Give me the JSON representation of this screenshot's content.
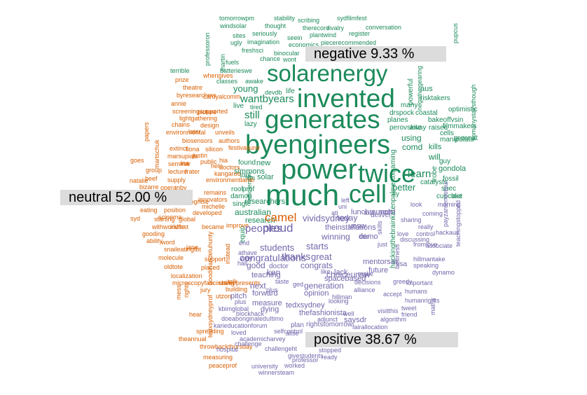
{
  "colors": {
    "positive": "#1b8a5a",
    "neutral": "#d95f02",
    "negative": "#7366ab",
    "label_bg": "#dcdcdc"
  },
  "labels": {
    "negative": "negative 9.33 %",
    "neutral": "neutral 52.00 %",
    "positive": "positive 38.67 %"
  },
  "words": [
    {
      "t": "solarenergy",
      "s": "positive"
    },
    {
      "t": "invented",
      "s": "positive"
    },
    {
      "t": "generates",
      "s": "positive"
    },
    {
      "t": "byengineers",
      "s": "positive"
    },
    {
      "t": "power",
      "s": "positive"
    },
    {
      "t": "twice",
      "s": "positive"
    },
    {
      "t": "much",
      "s": "positive"
    },
    {
      "t": "cell",
      "s": "positive"
    },
    {
      "t": "tomorrowpm",
      "s": "positive"
    },
    {
      "t": "stability",
      "s": "positive"
    },
    {
      "t": "sydfilmfest",
      "s": "positive"
    },
    {
      "t": "windsolar",
      "s": "positive"
    },
    {
      "t": "thought",
      "s": "positive"
    },
    {
      "t": "scribing",
      "s": "positive"
    },
    {
      "t": "therecord",
      "s": "positive"
    },
    {
      "t": "rivalry",
      "s": "positive"
    },
    {
      "t": "conversation",
      "s": "positive"
    },
    {
      "t": "sites",
      "s": "positive"
    },
    {
      "t": "seriously",
      "s": "positive"
    },
    {
      "t": "seein",
      "s": "positive"
    },
    {
      "t": "plantwind",
      "s": "positive"
    },
    {
      "t": "register",
      "s": "positive"
    },
    {
      "t": "ugly",
      "s": "positive"
    },
    {
      "t": "imagination",
      "s": "positive"
    },
    {
      "t": "economics",
      "s": "positive"
    },
    {
      "t": "piecerecommended",
      "s": "positive"
    },
    {
      "t": "freshsci",
      "s": "positive"
    },
    {
      "t": "binocular",
      "s": "positive"
    },
    {
      "t": "chance",
      "s": "positive"
    },
    {
      "t": "wont",
      "s": "positive"
    },
    {
      "t": "fuels",
      "s": "positive"
    },
    {
      "t": "batterieswe",
      "s": "positive"
    },
    {
      "t": "martin",
      "s": "positive"
    },
    {
      "t": "professoron",
      "s": "positive"
    },
    {
      "t": "classes",
      "s": "positive"
    },
    {
      "t": "awake",
      "s": "positive"
    },
    {
      "t": "young",
      "s": "positive"
    },
    {
      "t": "devdb",
      "s": "positive"
    },
    {
      "t": "life",
      "s": "positive"
    },
    {
      "t": "wantbyears",
      "s": "positive"
    },
    {
      "t": "live",
      "s": "positive"
    },
    {
      "t": "tired",
      "s": "positive"
    },
    {
      "t": "still",
      "s": "positive"
    },
    {
      "t": "lazy",
      "s": "positive"
    },
    {
      "t": "tool",
      "s": "positive"
    },
    {
      "t": "found",
      "s": "positive"
    },
    {
      "t": "new",
      "s": "positive"
    },
    {
      "t": "simmons",
      "s": "positive"
    },
    {
      "t": "solar",
      "s": "positive"
    },
    {
      "t": "film",
      "s": "positive"
    },
    {
      "t": "researchers",
      "s": "positive"
    },
    {
      "t": "australian",
      "s": "positive"
    },
    {
      "t": "research",
      "s": "positive"
    },
    {
      "t": "damop",
      "s": "positive"
    },
    {
      "t": "prof",
      "s": "positive"
    },
    {
      "t": "roof",
      "s": "positive"
    },
    {
      "t": "single",
      "s": "positive"
    },
    {
      "t": "efficiency",
      "s": "positive"
    },
    {
      "t": "equip",
      "s": "positive"
    },
    {
      "t": "using",
      "s": "positive"
    },
    {
      "t": "comd",
      "s": "positive"
    },
    {
      "t": "learn",
      "s": "positive"
    },
    {
      "t": "will",
      "s": "positive"
    },
    {
      "t": "better",
      "s": "positive"
    },
    {
      "t": "gondola",
      "s": "positive"
    },
    {
      "t": "guy",
      "s": "positive"
    },
    {
      "t": "fossil",
      "s": "positive"
    },
    {
      "t": "snec",
      "s": "positive"
    },
    {
      "t": "cupcake",
      "s": "positive"
    },
    {
      "t": "last",
      "s": "positive"
    },
    {
      "t": "trobe",
      "s": "positive"
    },
    {
      "t": "catalysts",
      "s": "positive"
    },
    {
      "t": "fly",
      "s": "positive"
    },
    {
      "t": "kills",
      "s": "positive"
    },
    {
      "t": "manipulate",
      "s": "positive"
    },
    {
      "t": "greenat",
      "s": "positive"
    },
    {
      "t": "cells",
      "s": "positive"
    },
    {
      "t": "raised",
      "s": "positive"
    },
    {
      "t": "filmmakers",
      "s": "positive"
    },
    {
      "t": "planes",
      "s": "positive"
    },
    {
      "t": "bakeoffvsin",
      "s": "positive"
    },
    {
      "t": "perovskite",
      "s": "positive"
    },
    {
      "t": "away",
      "s": "positive"
    },
    {
      "t": "drspock",
      "s": "positive"
    },
    {
      "t": "coastal",
      "s": "positive"
    },
    {
      "t": "optimistic",
      "s": "positive"
    },
    {
      "t": "many",
      "s": "positive"
    },
    {
      "t": "risktakers",
      "s": "positive"
    },
    {
      "t": "negativegearing",
      "s": "positive"
    },
    {
      "t": "powerful",
      "s": "positive"
    },
    {
      "t": "aus",
      "s": "positive"
    },
    {
      "t": "pupcus",
      "s": "positive"
    },
    {
      "t": "somanystairsthough",
      "s": "positive"
    },
    {
      "t": "hackingthebrainkarenpalmeruxgaming",
      "s": "positive"
    },
    {
      "t": "terrible",
      "s": "positive"
    },
    {
      "t": "whengives",
      "s": "neutral"
    },
    {
      "t": "prize",
      "s": "neutral"
    },
    {
      "t": "theatre",
      "s": "neutral"
    },
    {
      "t": "byresearchers",
      "s": "neutral"
    },
    {
      "t": "caroyalcomm",
      "s": "neutral"
    },
    {
      "t": "annie",
      "s": "neutral"
    },
    {
      "t": "screeningsupported",
      "s": "neutral"
    },
    {
      "t": "picture",
      "s": "neutral"
    },
    {
      "t": "lightgathering",
      "s": "neutral"
    },
    {
      "t": "chains",
      "s": "neutral"
    },
    {
      "t": "design",
      "s": "neutral"
    },
    {
      "t": "environmental",
      "s": "neutral"
    },
    {
      "t": "later",
      "s": "neutral"
    },
    {
      "t": "unveils",
      "s": "neutral"
    },
    {
      "t": "biosensors",
      "s": "neutral"
    },
    {
      "t": "marsupials",
      "s": "neutral"
    },
    {
      "t": "authors",
      "s": "neutral"
    },
    {
      "t": "extinct",
      "s": "neutral"
    },
    {
      "t": "fiona",
      "s": "neutral"
    },
    {
      "t": "silicon",
      "s": "neutral"
    },
    {
      "t": "justin",
      "s": "neutral"
    },
    {
      "t": "festivaljune",
      "s": "neutral"
    },
    {
      "t": "goes",
      "s": "neutral"
    },
    {
      "t": "seminar",
      "s": "neutral"
    },
    {
      "t": "ina",
      "s": "neutral"
    },
    {
      "t": "public",
      "s": "neutral"
    },
    {
      "t": "hia",
      "s": "neutral"
    },
    {
      "t": "help",
      "s": "neutral"
    },
    {
      "t": "group",
      "s": "neutral"
    },
    {
      "t": "lecture",
      "s": "neutral"
    },
    {
      "t": "frater",
      "s": "neutral"
    },
    {
      "t": "kangaroo",
      "s": "neutral"
    },
    {
      "t": "beef",
      "s": "neutral"
    },
    {
      "t": "natalie",
      "s": "neutral"
    },
    {
      "t": "supply",
      "s": "neutral"
    },
    {
      "t": "environmentlamb",
      "s": "neutral"
    },
    {
      "t": "bizarre",
      "s": "neutral"
    },
    {
      "t": "opera",
      "s": "neutral"
    },
    {
      "t": "inby",
      "s": "neutral"
    },
    {
      "t": "remains",
      "s": "neutral"
    },
    {
      "t": "michelle",
      "s": "neutral"
    },
    {
      "t": "eating",
      "s": "neutral"
    },
    {
      "t": "position",
      "s": "neutral"
    },
    {
      "t": "scinema",
      "s": "neutral"
    },
    {
      "t": "syd",
      "s": "neutral"
    },
    {
      "t": "starting",
      "s": "neutral"
    },
    {
      "t": "global",
      "s": "neutral"
    },
    {
      "t": "withworldfirst",
      "s": "neutral"
    },
    {
      "t": "invite",
      "s": "neutral"
    },
    {
      "t": "became",
      "s": "neutral"
    },
    {
      "t": "gooding",
      "s": "neutral"
    },
    {
      "t": "innovators",
      "s": "neutral"
    },
    {
      "t": "improve",
      "s": "neutral"
    },
    {
      "t": "ability",
      "s": "neutral"
    },
    {
      "t": "word",
      "s": "neutral"
    },
    {
      "t": "snaileatingtbt",
      "s": "neutral"
    },
    {
      "t": "jane",
      "s": "neutral"
    },
    {
      "t": "support",
      "s": "neutral"
    },
    {
      "t": "molecule",
      "s": "neutral"
    },
    {
      "t": "oldtote",
      "s": "neutral"
    },
    {
      "t": "placed",
      "s": "neutral"
    },
    {
      "t": "localization",
      "s": "neutral"
    },
    {
      "t": "microscopyfascinating",
      "s": "neutral"
    },
    {
      "t": "chetrepresents",
      "s": "neutral"
    },
    {
      "t": "talk",
      "s": "neutral"
    },
    {
      "t": "jury",
      "s": "neutral"
    },
    {
      "t": "building",
      "s": "neutral"
    },
    {
      "t": "utzon",
      "s": "neutral"
    },
    {
      "t": "hear",
      "s": "neutral"
    },
    {
      "t": "spreading",
      "s": "neutral"
    },
    {
      "t": "theannual",
      "s": "neutral"
    },
    {
      "t": "throwbackthursday",
      "s": "neutral"
    },
    {
      "t": "measuring",
      "s": "neutral"
    },
    {
      "t": "peaceprof",
      "s": "neutral"
    },
    {
      "t": "tedxsydneyprof",
      "s": "neutral"
    },
    {
      "t": "mess",
      "s": "neutral"
    },
    {
      "t": "rights",
      "s": "neutral"
    },
    {
      "t": "papers",
      "s": "neutral"
    },
    {
      "t": "martschuk",
      "s": "neutral"
    },
    {
      "t": "goodmandeluhunty",
      "s": "neutral"
    },
    {
      "t": "instead",
      "s": "neutral"
    },
    {
      "t": "developed",
      "s": "neutral"
    },
    {
      "t": "recognise",
      "s": "neutral"
    },
    {
      "t": "doctors",
      "s": "neutral"
    },
    {
      "t": "camel",
      "s": "neutral"
    },
    {
      "t": "proud",
      "s": "negative"
    },
    {
      "t": "vividsydney",
      "s": "negative"
    },
    {
      "t": "today",
      "s": "negative"
    },
    {
      "t": "peoples",
      "s": "negative"
    },
    {
      "t": "theinstallations",
      "s": "negative"
    },
    {
      "t": "unsw",
      "s": "negative"
    },
    {
      "t": "winning",
      "s": "negative"
    },
    {
      "t": "students",
      "s": "negative"
    },
    {
      "t": "starts",
      "s": "negative"
    },
    {
      "t": "congratulations",
      "s": "negative"
    },
    {
      "t": "thanks",
      "s": "negative"
    },
    {
      "t": "great",
      "s": "negative"
    },
    {
      "t": "congrats",
      "s": "negative"
    },
    {
      "t": "choiceunsw",
      "s": "negative"
    },
    {
      "t": "ken",
      "s": "negative"
    },
    {
      "t": "teaching",
      "s": "negative"
    },
    {
      "t": "next",
      "s": "negative"
    },
    {
      "t": "generation",
      "s": "negative"
    },
    {
      "t": "spacebased",
      "s": "negative"
    },
    {
      "t": "forward",
      "s": "negative"
    },
    {
      "t": "lunchmunch",
      "s": "negative"
    },
    {
      "t": "deliver",
      "s": "negative"
    },
    {
      "t": "demo",
      "s": "negative"
    },
    {
      "t": "mentorsat",
      "s": "negative"
    },
    {
      "t": "future",
      "s": "negative"
    },
    {
      "t": "look",
      "s": "negative"
    },
    {
      "t": "morning",
      "s": "negative"
    },
    {
      "t": "coming",
      "s": "negative"
    },
    {
      "t": "really",
      "s": "negative"
    },
    {
      "t": "sharing",
      "s": "negative"
    },
    {
      "t": "discussing",
      "s": "negative"
    },
    {
      "t": "control",
      "s": "negative"
    },
    {
      "t": "hackaus",
      "s": "negative"
    },
    {
      "t": "payzanlenestour",
      "s": "negative"
    },
    {
      "t": "teachingstopped",
      "s": "negative"
    },
    {
      "t": "fromlove",
      "s": "negative"
    },
    {
      "t": "hillmantake",
      "s": "negative"
    },
    {
      "t": "speaking",
      "s": "negative"
    },
    {
      "t": "dynamo",
      "s": "negative"
    },
    {
      "t": "greedy",
      "s": "negative"
    },
    {
      "t": "important",
      "s": "negative"
    },
    {
      "t": "humans",
      "s": "negative"
    },
    {
      "t": "humanrights",
      "s": "negative"
    },
    {
      "t": "maths",
      "s": "negative"
    },
    {
      "t": "algorithm",
      "s": "negative"
    },
    {
      "t": "tweet",
      "s": "negative"
    },
    {
      "t": "friend",
      "s": "negative"
    },
    {
      "t": "visitthis",
      "s": "negative"
    },
    {
      "t": "thefashionista",
      "s": "negative"
    },
    {
      "t": "saysdr",
      "s": "negative"
    },
    {
      "t": "rightstomorrow",
      "s": "negative"
    },
    {
      "t": "fairallocation",
      "s": "negative"
    },
    {
      "t": "tedxsydney",
      "s": "negative"
    },
    {
      "t": "dying",
      "s": "negative"
    },
    {
      "t": "kbimglobal",
      "s": "negative"
    },
    {
      "t": "blockhack",
      "s": "negative"
    },
    {
      "t": "doeabonginaleduItimo",
      "s": "negative"
    },
    {
      "t": "karieducationforum",
      "s": "negative"
    },
    {
      "t": "selfcontrol",
      "s": "negative"
    },
    {
      "t": "loved",
      "s": "negative"
    },
    {
      "t": "academicharvey",
      "s": "negative"
    },
    {
      "t": "challenge",
      "s": "negative"
    },
    {
      "t": "hospital",
      "s": "negative"
    },
    {
      "t": "challengeht",
      "s": "negative"
    },
    {
      "t": "givestudents",
      "s": "negative"
    },
    {
      "t": "professor",
      "s": "negative"
    },
    {
      "t": "stopped",
      "s": "negative"
    },
    {
      "t": "ready",
      "s": "negative"
    },
    {
      "t": "university",
      "s": "negative"
    },
    {
      "t": "worked",
      "s": "negative"
    },
    {
      "t": "winnersteam",
      "s": "negative"
    },
    {
      "t": "pitch",
      "s": "negative"
    },
    {
      "t": "measure",
      "s": "negative"
    },
    {
      "t": "opinion",
      "s": "negative"
    },
    {
      "t": "hillman",
      "s": "negative"
    },
    {
      "t": "looking",
      "s": "negative"
    },
    {
      "t": "plan",
      "s": "negative"
    },
    {
      "t": "adjunct",
      "s": "negative"
    },
    {
      "t": "well",
      "s": "negative"
    },
    {
      "t": "decisions",
      "s": "negative"
    },
    {
      "t": "alliance",
      "s": "negative"
    },
    {
      "t": "accept",
      "s": "negative"
    },
    {
      "t": "taste",
      "s": "negative"
    },
    {
      "t": "ged",
      "s": "negative"
    },
    {
      "t": "doctor",
      "s": "negative"
    },
    {
      "t": "good",
      "s": "negative"
    },
    {
      "t": "lack",
      "s": "negative"
    },
    {
      "t": "make",
      "s": "negative"
    },
    {
      "t": "like",
      "s": "negative"
    },
    {
      "t": "lisa",
      "s": "negative"
    },
    {
      "t": "just",
      "s": "negative"
    },
    {
      "t": "need",
      "s": "negative"
    },
    {
      "t": "uni",
      "s": "negative"
    },
    {
      "t": "ati",
      "s": "negative"
    },
    {
      "t": "left",
      "s": "negative"
    },
    {
      "t": "told",
      "s": "negative"
    },
    {
      "t": "skills",
      "s": "negative"
    },
    {
      "t": "title",
      "s": "negative"
    },
    {
      "t": "business",
      "s": "negative"
    },
    {
      "t": "associate",
      "s": "negative"
    },
    {
      "t": "plus",
      "s": "negative"
    },
    {
      "t": "athave",
      "s": "negative"
    },
    {
      "t": "end",
      "s": "negative"
    },
    {
      "t": "way",
      "s": "negative"
    },
    {
      "t": "hall",
      "s": "negative"
    },
    {
      "t": "alise",
      "s": "negative"
    },
    {
      "t": "plus",
      "s": "negative"
    },
    {
      "t": "love",
      "s": "negative"
    }
  ]
}
